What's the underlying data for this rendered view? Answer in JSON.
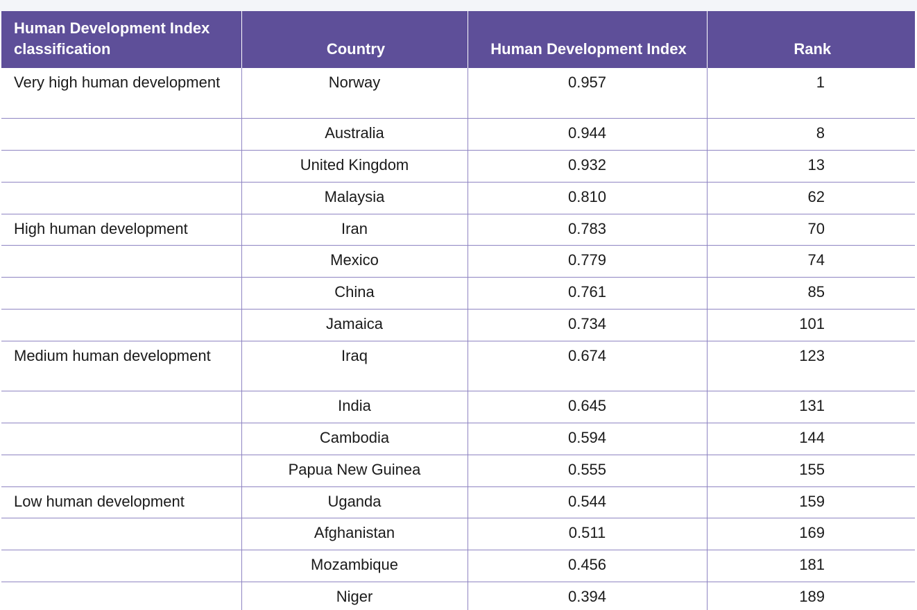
{
  "table": {
    "headers": {
      "classification": "Human Development Index classification",
      "country": "Country",
      "index": "Human Development Index",
      "rank": "Rank"
    },
    "rows": [
      {
        "classification": "Very high human development",
        "country": "Norway",
        "index": "0.957",
        "rank": "1"
      },
      {
        "classification": "",
        "country": "Australia",
        "index": "0.944",
        "rank": "8"
      },
      {
        "classification": "",
        "country": "United Kingdom",
        "index": "0.932",
        "rank": "13"
      },
      {
        "classification": "",
        "country": "Malaysia",
        "index": "0.810",
        "rank": "62"
      },
      {
        "classification": "High human development",
        "country": "Iran",
        "index": "0.783",
        "rank": "70"
      },
      {
        "classification": "",
        "country": "Mexico",
        "index": "0.779",
        "rank": "74"
      },
      {
        "classification": "",
        "country": "China",
        "index": "0.761",
        "rank": "85"
      },
      {
        "classification": "",
        "country": "Jamaica",
        "index": "0.734",
        "rank": "101"
      },
      {
        "classification": "Medium human development",
        "country": "Iraq",
        "index": "0.674",
        "rank": "123"
      },
      {
        "classification": "",
        "country": "India",
        "index": "0.645",
        "rank": "131"
      },
      {
        "classification": "",
        "country": "Cambodia",
        "index": "0.594",
        "rank": "144"
      },
      {
        "classification": "",
        "country": "Papua New Guinea",
        "index": "0.555",
        "rank": "155"
      },
      {
        "classification": "Low human development",
        "country": "Uganda",
        "index": "0.544",
        "rank": "159"
      },
      {
        "classification": "",
        "country": "Afghanistan",
        "index": "0.511",
        "rank": "169"
      },
      {
        "classification": "",
        "country": "Mozambique",
        "index": "0.456",
        "rank": "181"
      },
      {
        "classification": "",
        "country": "Niger",
        "index": "0.394",
        "rank": "189"
      }
    ]
  },
  "colors": {
    "header_bg": "#5e4f99",
    "header_text": "#ffffff",
    "rule": "#8e84c2",
    "body_text": "#1a1a1a"
  }
}
